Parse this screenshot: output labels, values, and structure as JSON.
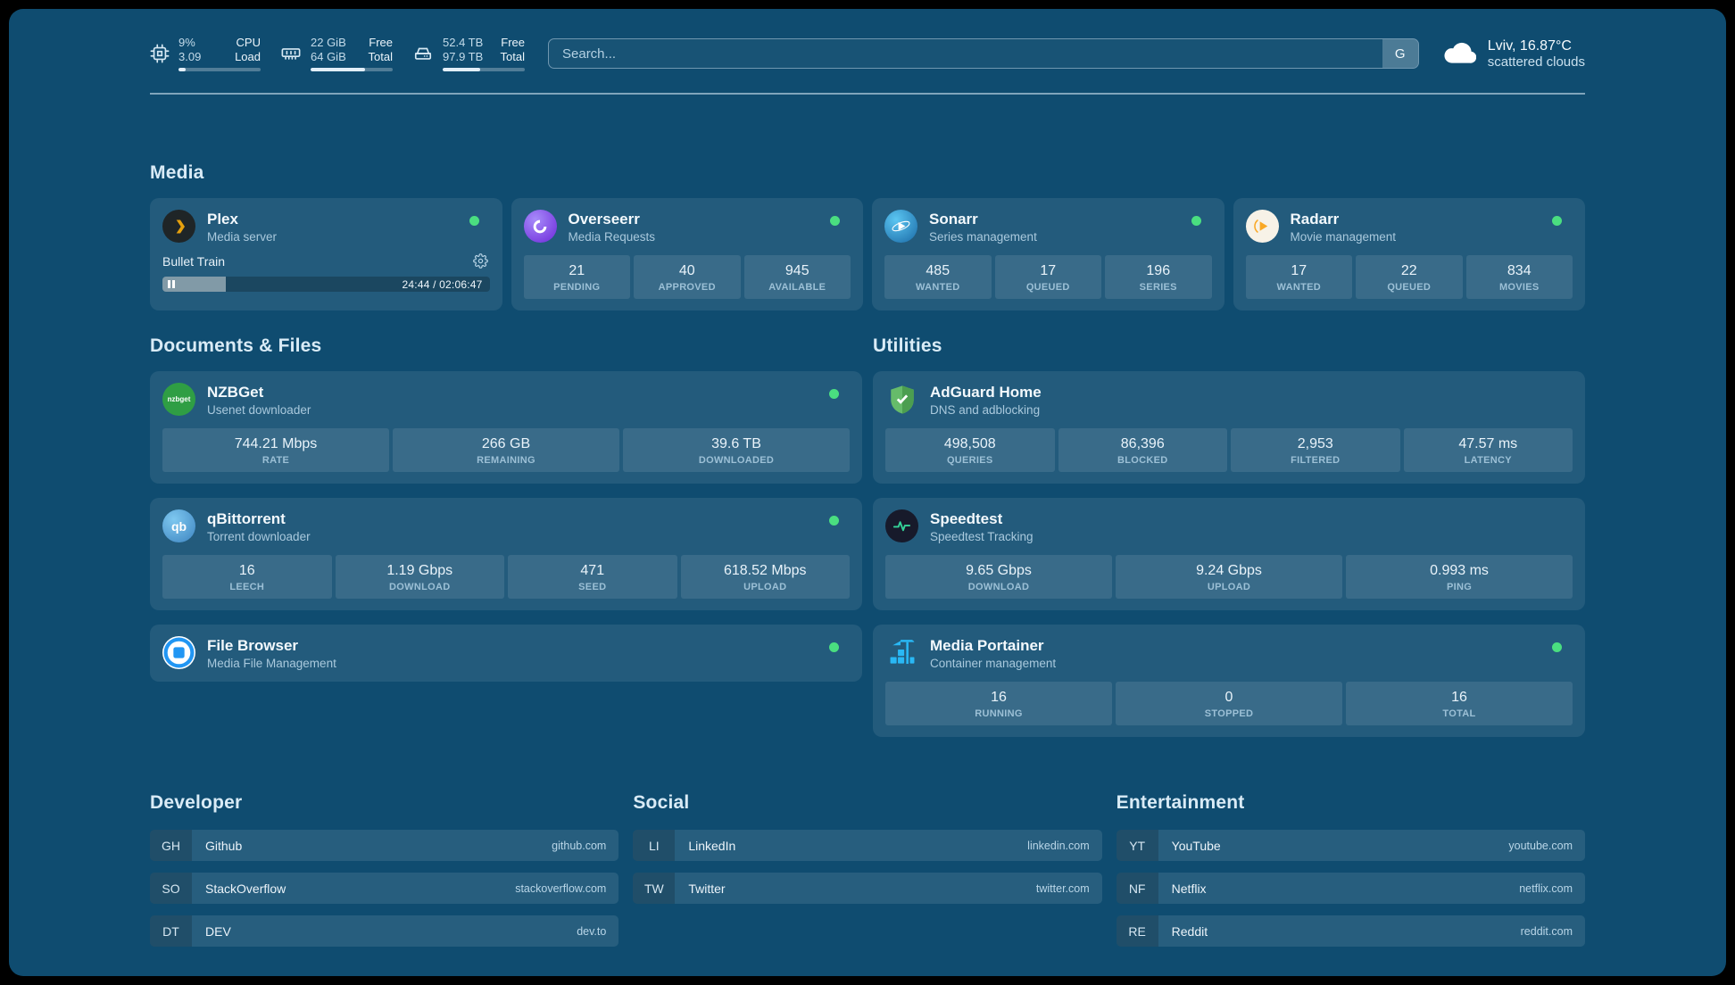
{
  "colors": {
    "background": "#0f4c70",
    "status_online": "#4ade80",
    "plex_amber": "#e5a00d",
    "overseerr_purple": "#6d28d9",
    "sonarr_blue": "#2e9fd4",
    "radarr_amber": "#f9a825",
    "nzbget_green": "#2f9e44",
    "qbittorrent_blue": "#4690c9",
    "filebrowser_blue": "#2196f3",
    "adguard_green": "#66bb6a",
    "speedtest_pulse": "#34d399",
    "portainer_blue": "#29b8f5"
  },
  "topbar": {
    "cpu": {
      "value1": "9%",
      "label1": "CPU",
      "value2": "3.09",
      "label2": "Load",
      "progress_pct": 9
    },
    "memory": {
      "value1": "22 GiB",
      "label1": "Free",
      "value2": "64 GiB",
      "label2": "Total",
      "progress_pct": 66
    },
    "disk": {
      "value1": "52.4 TB",
      "label1": "Free",
      "value2": "97.9 TB",
      "label2": "Total",
      "progress_pct": 46
    },
    "search": {
      "placeholder": "Search...",
      "provider": "G"
    },
    "weather": {
      "location": "Lviv, 16.87°C",
      "condition": "scattered clouds"
    }
  },
  "sections": {
    "media": {
      "title": "Media"
    },
    "documents": {
      "title": "Documents & Files"
    },
    "utilities": {
      "title": "Utilities"
    }
  },
  "services": {
    "plex": {
      "name": "Plex",
      "desc": "Media server",
      "player": {
        "title": "Bullet Train",
        "time": "24:44 / 02:06:47",
        "progress_pct": 19.5
      }
    },
    "overseerr": {
      "name": "Overseerr",
      "desc": "Media Requests",
      "stats": [
        {
          "value": "21",
          "label": "PENDING"
        },
        {
          "value": "40",
          "label": "APPROVED"
        },
        {
          "value": "945",
          "label": "AVAILABLE"
        }
      ]
    },
    "sonarr": {
      "name": "Sonarr",
      "desc": "Series management",
      "stats": [
        {
          "value": "485",
          "label": "WANTED"
        },
        {
          "value": "17",
          "label": "QUEUED"
        },
        {
          "value": "196",
          "label": "SERIES"
        }
      ]
    },
    "radarr": {
      "name": "Radarr",
      "desc": "Movie management",
      "stats": [
        {
          "value": "17",
          "label": "WANTED"
        },
        {
          "value": "22",
          "label": "QUEUED"
        },
        {
          "value": "834",
          "label": "MOVIES"
        }
      ]
    },
    "nzbget": {
      "name": "NZBGet",
      "desc": "Usenet downloader",
      "icon_text": "nzbget",
      "stats": [
        {
          "value": "744.21 Mbps",
          "label": "RATE"
        },
        {
          "value": "266 GB",
          "label": "REMAINING"
        },
        {
          "value": "39.6 TB",
          "label": "DOWNLOADED"
        }
      ]
    },
    "qbittorrent": {
      "name": "qBittorrent",
      "desc": "Torrent downloader",
      "icon_text": "qb",
      "stats": [
        {
          "value": "16",
          "label": "LEECH"
        },
        {
          "value": "1.19 Gbps",
          "label": "DOWNLOAD"
        },
        {
          "value": "471",
          "label": "SEED"
        },
        {
          "value": "618.52 Mbps",
          "label": "UPLOAD"
        }
      ]
    },
    "filebrowser": {
      "name": "File Browser",
      "desc": "Media File Management"
    },
    "adguard": {
      "name": "AdGuard Home",
      "desc": "DNS and adblocking",
      "stats": [
        {
          "value": "498,508",
          "label": "QUERIES"
        },
        {
          "value": "86,396",
          "label": "BLOCKED"
        },
        {
          "value": "2,953",
          "label": "FILTERED"
        },
        {
          "value": "47.57 ms",
          "label": "LATENCY"
        }
      ]
    },
    "speedtest": {
      "name": "Speedtest",
      "desc": "Speedtest Tracking",
      "stats": [
        {
          "value": "9.65 Gbps",
          "label": "DOWNLOAD"
        },
        {
          "value": "9.24 Gbps",
          "label": "UPLOAD"
        },
        {
          "value": "0.993 ms",
          "label": "PING"
        }
      ]
    },
    "portainer": {
      "name": "Media Portainer",
      "desc": "Container management",
      "stats": [
        {
          "value": "16",
          "label": "RUNNING"
        },
        {
          "value": "0",
          "label": "STOPPED"
        },
        {
          "value": "16",
          "label": "TOTAL"
        }
      ]
    }
  },
  "bookmarks": [
    {
      "title": "Developer",
      "items": [
        {
          "abbr": "GH",
          "name": "Github",
          "domain": "github.com"
        },
        {
          "abbr": "SO",
          "name": "StackOverflow",
          "domain": "stackoverflow.com"
        },
        {
          "abbr": "DT",
          "name": "DEV",
          "domain": "dev.to"
        }
      ]
    },
    {
      "title": "Social",
      "items": [
        {
          "abbr": "LI",
          "name": "LinkedIn",
          "domain": "linkedin.com"
        },
        {
          "abbr": "TW",
          "name": "Twitter",
          "domain": "twitter.com"
        }
      ]
    },
    {
      "title": "Entertainment",
      "items": [
        {
          "abbr": "YT",
          "name": "YouTube",
          "domain": "youtube.com"
        },
        {
          "abbr": "NF",
          "name": "Netflix",
          "domain": "netflix.com"
        },
        {
          "abbr": "RE",
          "name": "Reddit",
          "domain": "reddit.com"
        }
      ]
    }
  ]
}
